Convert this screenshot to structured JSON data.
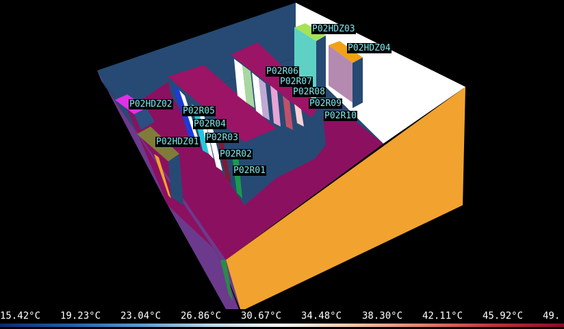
{
  "scene": {
    "racks": [
      {
        "id": "P02R01"
      },
      {
        "id": "P02R02"
      },
      {
        "id": "P02R03"
      },
      {
        "id": "P02R04"
      },
      {
        "id": "P02R05"
      },
      {
        "id": "P02R06"
      },
      {
        "id": "P02R07"
      },
      {
        "id": "P02R08"
      },
      {
        "id": "P02R09"
      },
      {
        "id": "P02R10"
      }
    ],
    "ac_units": [
      {
        "id": "P02HDZ01"
      },
      {
        "id": "P02HDZ02"
      },
      {
        "id": "P02HDZ03"
      },
      {
        "id": "P02HDZ04"
      }
    ]
  },
  "legend": {
    "ticks": [
      "15.42°C",
      "19.23°C",
      "23.04°C",
      "26.86°C",
      "30.67°C",
      "34.48°C",
      "38.30°C",
      "42.11°C",
      "45.92°C",
      "49."
    ],
    "gradient": [
      "#0a2a70",
      "#1f5fa8",
      "#5b9bd0",
      "#bcd9ea",
      "#f6f6f6",
      "#f6c7a8",
      "#e2806a",
      "#c3303a",
      "#8a0a26"
    ]
  }
}
